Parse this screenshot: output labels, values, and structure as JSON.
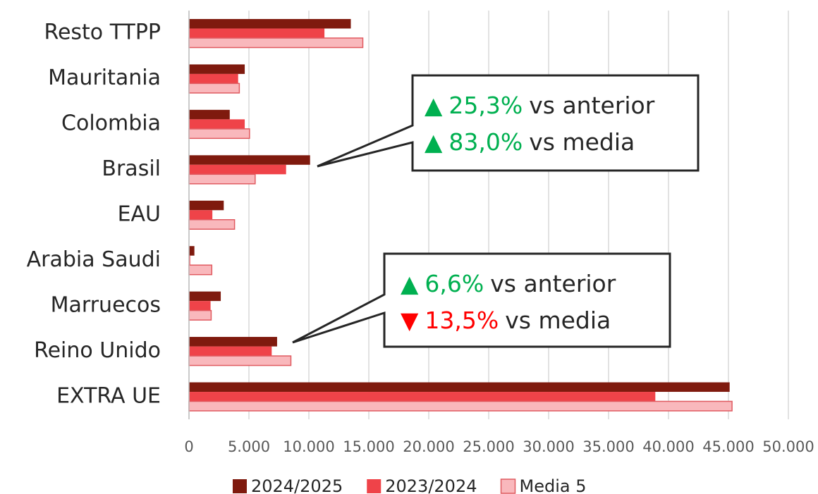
{
  "chart_data": {
    "type": "bar",
    "orientation": "horizontal",
    "categories": [
      "Resto TTPP",
      "Mauritania",
      "Colombia",
      "Brasil",
      "EAU",
      "Arabia Saudi",
      "Marruecos",
      "Reino Unido",
      "EXTRA UE"
    ],
    "series": [
      {
        "name": "2024/2025",
        "color": "#7f1a0e",
        "values": [
          13500,
          4650,
          3400,
          10100,
          2900,
          450,
          2650,
          7350,
          45100
        ]
      },
      {
        "name": "2023/2024",
        "color": "#ef4349",
        "values": [
          11300,
          4100,
          4650,
          8100,
          1950,
          100,
          1800,
          6900,
          38900
        ]
      },
      {
        "name": "Media 5",
        "color": "#f9b8bc",
        "values": [
          14500,
          4200,
          5050,
          5520,
          3800,
          1900,
          1850,
          8500,
          45300
        ]
      }
    ],
    "xlim": [
      0,
      50000
    ],
    "xticks": [
      0,
      {
        "value": 5000,
        "label": "5.000"
      },
      {
        "value": 10000,
        "label": "10.000"
      },
      {
        "value": 15000,
        "label": "15.000"
      },
      {
        "value": 20000,
        "label": "20.000"
      },
      {
        "value": 25000,
        "label": "25.000"
      },
      {
        "value": 30000,
        "label": "30.000"
      },
      {
        "value": 35000,
        "label": "35.000"
      },
      {
        "value": 40000,
        "label": "40.000"
      },
      {
        "value": 45000,
        "label": "45.000"
      },
      {
        "value": 50000,
        "label": "50.000"
      }
    ],
    "grid": true,
    "legend": "bottom",
    "annotations": [
      {
        "lines": [
          {
            "marker": "▲",
            "value": "25,3%",
            "text": "vs anterior",
            "color": "#00b050"
          },
          {
            "marker": "▲",
            "value": "83,0%",
            "text": "vs media",
            "color": "#00b050"
          }
        ]
      },
      {
        "lines": [
          {
            "marker": "▲",
            "value": "6,6%",
            "text": "vs anterior",
            "color": "#00b050"
          },
          {
            "marker": "▼",
            "value": "13,5%",
            "text": "vs media",
            "color": "#ff0000"
          }
        ]
      }
    ]
  }
}
